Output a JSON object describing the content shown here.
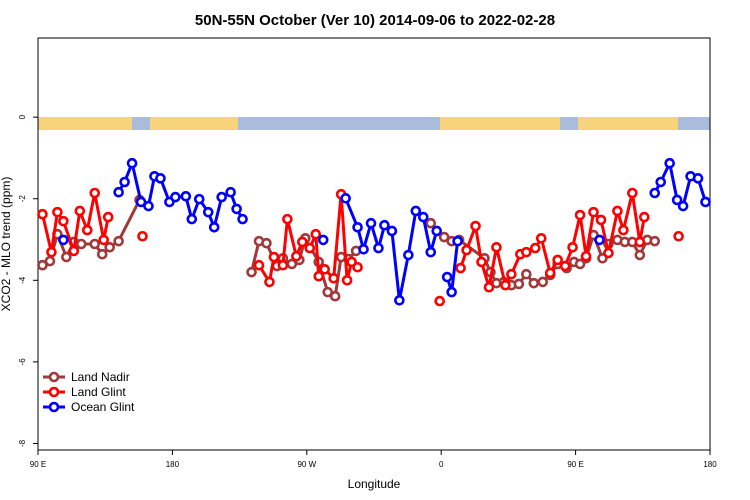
{
  "chart_data": {
    "type": "line",
    "title": "50N-55N October (Ver 10)   2014-09-06 to 2022-02-28",
    "x_label": "Longitude",
    "y_label": "XCO2 - MLO trend (ppm)",
    "xlim": [
      90,
      540
    ],
    "ylim": [
      -8.16,
      1.94
    ],
    "xticks": [
      {
        "value": 90,
        "label": "90 E"
      },
      180,
      {
        "value": 270,
        "label": "90 W"
      },
      {
        "value": 360,
        "label": "0"
      },
      {
        "value": 450,
        "label": "90 E"
      },
      180
    ],
    "yticks": [
      0,
      -2,
      -4,
      -6,
      -8
    ],
    "legend": "lower left",
    "series": [
      {
        "name": "Land Nadir",
        "color": "#a0393a",
        "x": [
          93,
          98,
          103,
          109,
          114,
          119,
          128,
          133,
          138,
          144,
          158,
          null,
          233,
          238,
          243,
          250,
          254,
          260,
          265,
          269,
          278,
          284,
          289,
          293,
          298,
          303,
          null,
          353,
          362,
          367,
          372,
          389,
          393,
          397,
          402,
          407,
          412,
          417,
          422,
          428,
          433,
          438,
          444,
          449,
          453,
          457,
          462,
          468,
          472,
          478,
          483,
          488,
          493,
          498,
          503
        ],
        "values": [
          -3.63,
          -3.53,
          -2.87,
          -3.43,
          -3.06,
          -3.11,
          -3.11,
          -3.36,
          -3.19,
          -3.04,
          -2.03,
          null,
          -3.8,
          -3.04,
          -3.09,
          -3.65,
          -3.46,
          -3.6,
          -3.5,
          -2.97,
          -3.55,
          -4.29,
          -4.39,
          -3.43,
          -3.48,
          -3.28,
          null,
          -2.6,
          -2.94,
          -3.04,
          -3.01,
          -3.46,
          -3.8,
          -4.07,
          -4.04,
          -4.12,
          -4.09,
          -3.85,
          -4.07,
          -4.04,
          -3.87,
          -3.6,
          -3.7,
          -3.55,
          -3.6,
          -3.46,
          -2.89,
          -3.46,
          -3.11,
          -3.01,
          -3.06,
          -3.06,
          -3.38,
          -3.01,
          -3.04
        ]
      },
      {
        "name": "Land Glint",
        "color": "#ff0000",
        "x": [
          93,
          99,
          103,
          107,
          114,
          118,
          123,
          128,
          134,
          137,
          null,
          160,
          null,
          238,
          245,
          248,
          254,
          257,
          263,
          267,
          272,
          276,
          278,
          282,
          288,
          293,
          297,
          300,
          304,
          null,
          359,
          null,
          373,
          377,
          383,
          387,
          392,
          397,
          403,
          407,
          413,
          417,
          423,
          427,
          433,
          438,
          443,
          448,
          453,
          457,
          462,
          467,
          472,
          478,
          482,
          488,
          493,
          496,
          null,
          519
        ],
        "values": [
          -2.38,
          -3.31,
          -2.33,
          -2.55,
          -3.28,
          -2.3,
          -2.77,
          -1.86,
          -3.01,
          -2.45,
          null,
          -2.92,
          null,
          -3.63,
          -4.04,
          -3.43,
          -3.63,
          -2.5,
          -3.41,
          -3.06,
          -3.21,
          -2.87,
          -3.9,
          -3.73,
          -3.95,
          -1.89,
          -4.0,
          -3.55,
          -3.68,
          null,
          -4.51,
          null,
          -3.7,
          -3.26,
          -2.67,
          -3.55,
          -4.17,
          -3.19,
          -4.12,
          -3.85,
          -3.36,
          -3.31,
          -3.21,
          -2.97,
          -3.82,
          -3.5,
          -3.65,
          -3.19,
          -2.4,
          -3.41,
          -2.33,
          -2.52,
          -3.33,
          -2.3,
          -2.77,
          -1.86,
          -3.06,
          -2.45,
          null,
          -2.92
        ]
      },
      {
        "name": "Ocean Glint",
        "color": "#0000ff",
        "x": [
          107,
          null,
          144,
          148,
          153,
          159,
          164,
          168,
          172,
          178,
          182,
          189,
          193,
          198,
          204,
          208,
          213,
          219,
          223,
          227,
          null,
          281,
          null,
          296,
          304,
          308,
          313,
          318,
          322,
          327,
          332,
          338,
          343,
          348,
          353,
          357,
          null,
          364,
          367,
          371,
          null,
          466,
          null,
          503,
          507,
          513,
          518,
          522,
          527,
          532,
          537
        ],
        "values": [
          -3.01,
          null,
          -1.84,
          -1.59,
          -1.13,
          -2.08,
          -2.18,
          -1.45,
          -1.5,
          -2.08,
          -1.96,
          -1.94,
          -2.5,
          -2.01,
          -2.33,
          -2.7,
          -1.96,
          -1.84,
          -2.25,
          -2.5,
          null,
          -3.01,
          null,
          -1.99,
          -2.7,
          -3.24,
          -2.6,
          -3.21,
          -2.65,
          -2.79,
          -4.49,
          -3.38,
          -2.3,
          -2.45,
          -3.31,
          -2.79,
          null,
          -3.92,
          -4.29,
          -3.04,
          null,
          -3.01,
          null,
          -1.86,
          -1.59,
          -1.13,
          -2.03,
          -2.18,
          -1.45,
          -1.5,
          -2.08
        ]
      }
    ]
  }
}
